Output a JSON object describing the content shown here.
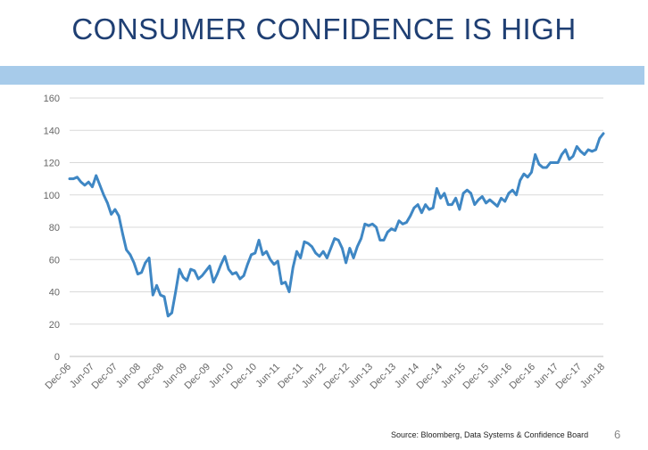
{
  "title": "CONSUMER CONFIDENCE IS HIGH",
  "source": "Source:  Bloomberg, Data Systems & Confidence Board",
  "page_number": "6",
  "colors": {
    "line": "#3f87c4",
    "band": "#a7cbea",
    "title": "#1f3f73",
    "grid": "#d9d9d9"
  },
  "chart_data": {
    "type": "line",
    "title": "",
    "xlabel": "",
    "ylabel": "",
    "ylim": [
      0,
      160
    ],
    "yticks": [
      0,
      20,
      40,
      60,
      80,
      100,
      120,
      140,
      160
    ],
    "xtick_labels": [
      "Dec-06",
      "Jun-07",
      "Dec-07",
      "Jun-08",
      "Dec-08",
      "Jun-09",
      "Dec-09",
      "Jun-10",
      "Dec-10",
      "Jun-11",
      "Dec-11",
      "Jun-12",
      "Dec-12",
      "Jun-13",
      "Dec-13",
      "Jun-14",
      "Dec-14",
      "Jun-15",
      "Dec-15",
      "Jun-16",
      "Dec-16",
      "Jun-17",
      "Dec-17",
      "Jun-18"
    ],
    "grid": true,
    "legend": "none",
    "series": [
      {
        "values": [
          110,
          110,
          111,
          108,
          106,
          108,
          105,
          112,
          106,
          100,
          95,
          88,
          91,
          87,
          76,
          66,
          63,
          58,
          51,
          52,
          58,
          61,
          38,
          44,
          38,
          37,
          25,
          27,
          40,
          54,
          49,
          47,
          54,
          53,
          48,
          50,
          53,
          56,
          46,
          51,
          57,
          62,
          54,
          51,
          52,
          48,
          50,
          57,
          63,
          64,
          72,
          63,
          65,
          60,
          57,
          59,
          45,
          46,
          40,
          55,
          65,
          61,
          71,
          70,
          68,
          64,
          62,
          65,
          61,
          67,
          73,
          72,
          67,
          58,
          67,
          61,
          68,
          73,
          82,
          81,
          82,
          80,
          72,
          72,
          77,
          79,
          78,
          84,
          82,
          83,
          87,
          92,
          94,
          89,
          94,
          91,
          92,
          104,
          98,
          101,
          94,
          94,
          98,
          91,
          101,
          103,
          101,
          94,
          97,
          99,
          95,
          97,
          95,
          93,
          98,
          96,
          101,
          103,
          100,
          109,
          113,
          111,
          114,
          125,
          119,
          117,
          117,
          120,
          120,
          120,
          125,
          128,
          122,
          124,
          130,
          127,
          125,
          128,
          127,
          128,
          135,
          138
        ]
      }
    ]
  }
}
